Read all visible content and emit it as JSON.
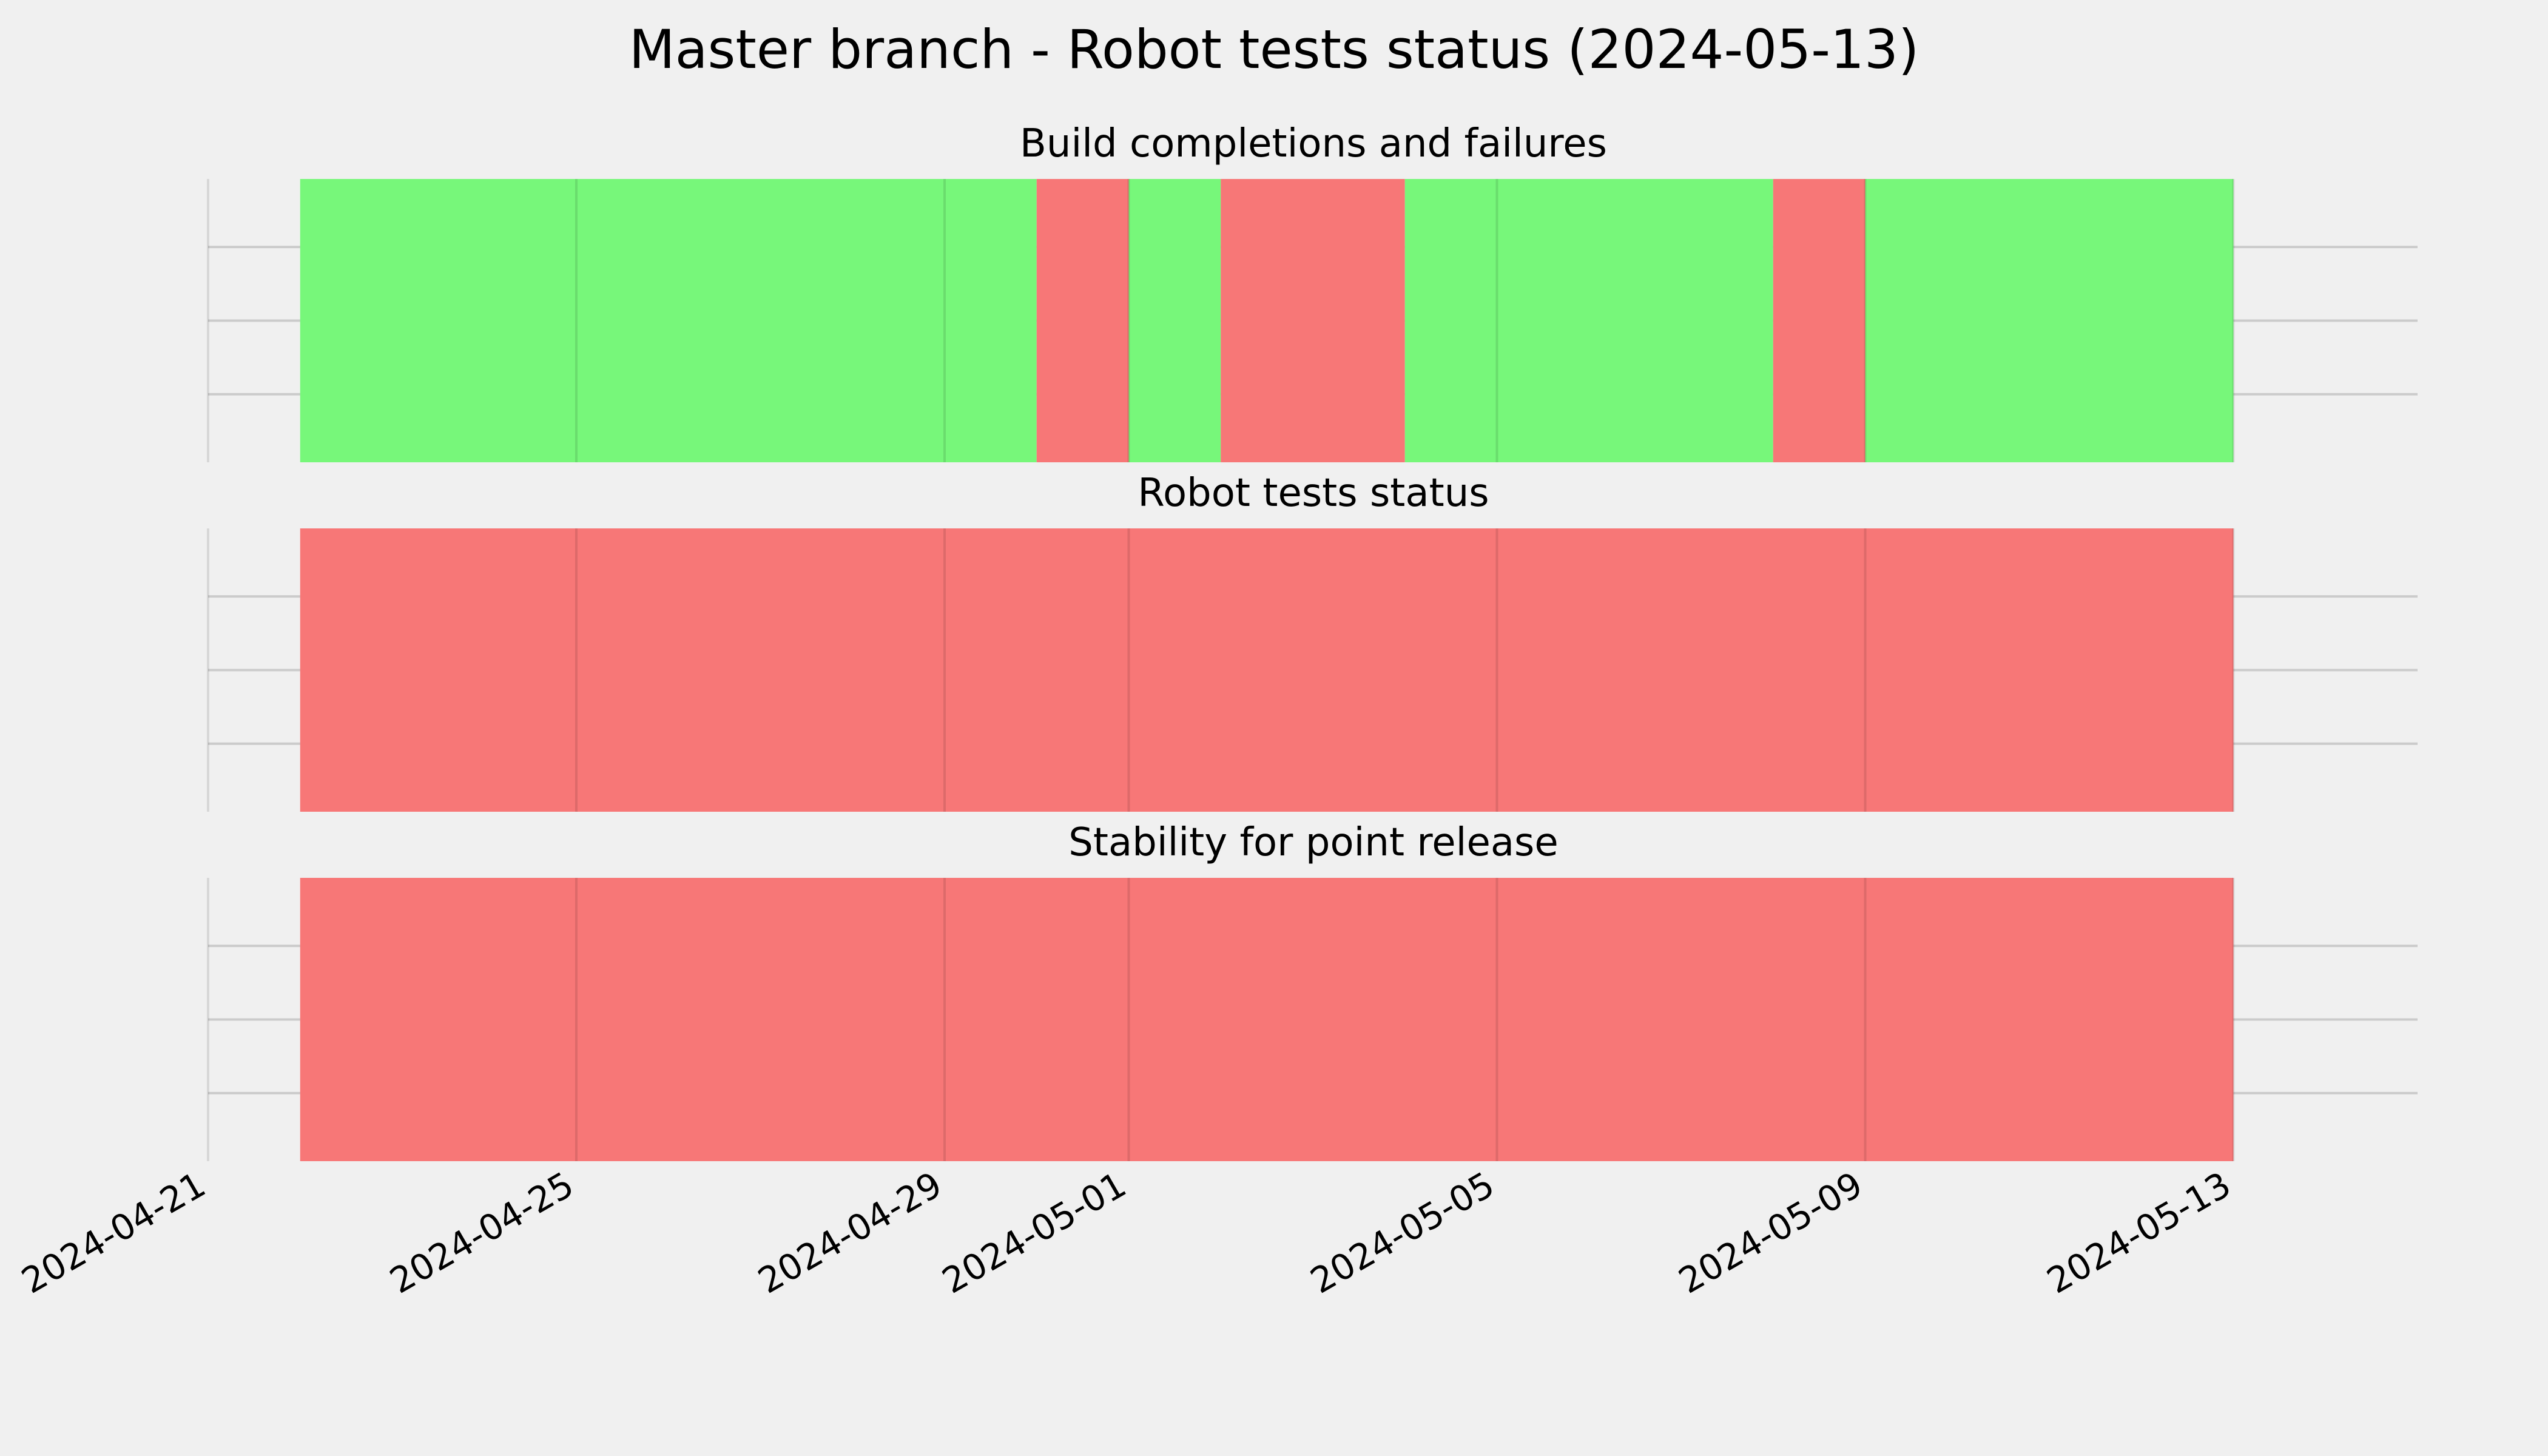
{
  "chart_data": {
    "type": "timeline",
    "title": "Master branch - Robot tests status (2024-05-13)",
    "x_axis": {
      "type": "date",
      "range": [
        "2024-04-21",
        "2024-05-15"
      ],
      "ticks": [
        "2024-04-21",
        "2024-04-25",
        "2024-04-29",
        "2024-05-01",
        "2024-05-05",
        "2024-05-09",
        "2024-05-13"
      ]
    },
    "y_axis": {
      "tick_labels_visible": false,
      "gridlines": 4
    },
    "grid": true,
    "status_colors": {
      "pass": "#77f77a",
      "fail": "#f77777"
    },
    "panels": [
      {
        "title": "Build completions and failures",
        "segments": [
          {
            "start": "2024-04-22",
            "end": "2024-04-30",
            "status": "pass"
          },
          {
            "start": "2024-04-30",
            "end": "2024-05-01",
            "status": "fail"
          },
          {
            "start": "2024-05-01",
            "end": "2024-05-02",
            "status": "pass"
          },
          {
            "start": "2024-05-02",
            "end": "2024-05-04",
            "status": "fail"
          },
          {
            "start": "2024-05-04",
            "end": "2024-05-08",
            "status": "pass"
          },
          {
            "start": "2024-05-08",
            "end": "2024-05-09",
            "status": "fail"
          },
          {
            "start": "2024-05-09",
            "end": "2024-05-13",
            "status": "pass"
          }
        ]
      },
      {
        "title": "Robot tests status",
        "segments": [
          {
            "start": "2024-04-22",
            "end": "2024-05-13",
            "status": "fail"
          }
        ]
      },
      {
        "title": "Stability for point release",
        "segments": [
          {
            "start": "2024-04-22",
            "end": "2024-05-13",
            "status": "fail"
          }
        ]
      }
    ]
  }
}
